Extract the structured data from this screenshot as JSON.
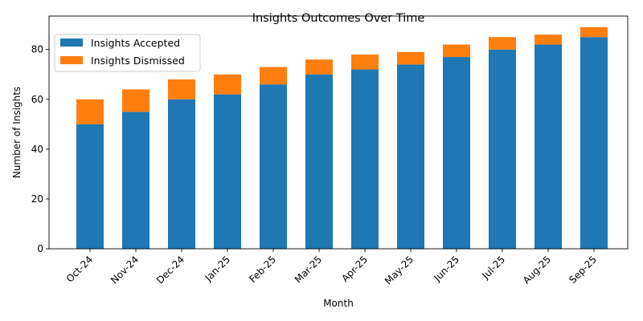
{
  "chart_data": {
    "type": "bar",
    "stacked": true,
    "title": "Insights Outcomes Over Time",
    "xlabel": "Month",
    "ylabel": "Number of Insights",
    "categories": [
      "Oct-24",
      "Nov-24",
      "Dec-24",
      "Jan-25",
      "Feb-25",
      "Mar-25",
      "Apr-25",
      "May-25",
      "Jun-25",
      "Jul-25",
      "Aug-25",
      "Sep-25"
    ],
    "series": [
      {
        "name": "Insights Accepted",
        "color": "#1f77b4",
        "values": [
          50,
          55,
          60,
          62,
          66,
          70,
          72,
          74,
          77,
          80,
          82,
          85
        ]
      },
      {
        "name": "Insights Dismissed",
        "color": "#ff7f0e",
        "values": [
          10,
          9,
          8,
          8,
          7,
          6,
          6,
          5,
          5,
          5,
          4,
          4
        ]
      }
    ],
    "ylim": [
      0,
      93.45
    ],
    "yticks": [
      0,
      20,
      40,
      60,
      80
    ],
    "legend_position": "top-left",
    "grid": false
  }
}
